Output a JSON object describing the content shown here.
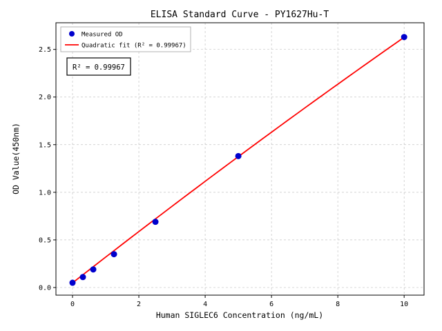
{
  "figure": {
    "background": "#ffffff"
  },
  "chart_data": {
    "type": "scatter",
    "title": "ELISA Standard Curve - PY1627Hu-T",
    "xlabel": "Human SIGLEC6 Concentration (ng/mL)",
    "ylabel": "OD Value(450nm)",
    "xlim": [
      -0.5,
      10.6
    ],
    "ylim": [
      -0.08,
      2.78
    ],
    "xticks": [
      0,
      2,
      4,
      6,
      8,
      10
    ],
    "yticks": [
      0.0,
      0.5,
      1.0,
      1.5,
      2.0,
      2.5
    ],
    "grid": true,
    "grid_style": "dashed",
    "legend_position": "upper-left",
    "annotation": "R² = 0.99967",
    "series": [
      {
        "name": "Measured OD",
        "kind": "scatter",
        "color": "#0000cd",
        "x": [
          0,
          0.3125,
          0.625,
          1.25,
          2.5,
          5,
          10
        ],
        "y": [
          0.05,
          0.11,
          0.19,
          0.35,
          0.69,
          1.38,
          2.63
        ]
      },
      {
        "name": "Quadratic fit (R² = 0.99967)",
        "kind": "line",
        "color": "#ff0000",
        "fit": {
          "a": 0.0486,
          "b": 0.2724,
          "c": -0.00145
        },
        "x_range": [
          0,
          10
        ]
      }
    ]
  }
}
